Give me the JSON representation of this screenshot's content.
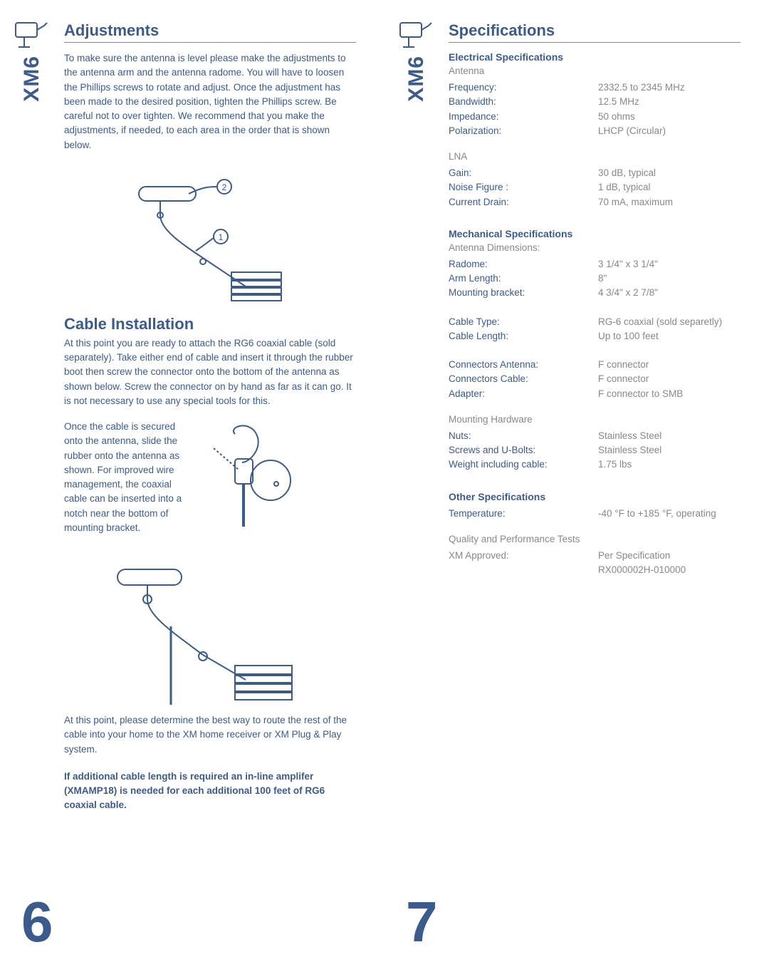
{
  "brand_label": "XM6",
  "left": {
    "title": "Adjustments",
    "para1": "To make sure the antenna is level please make the adjustments to the antenna arm and the antenna radome. You will have to loosen the Phillips screws to rotate and adjust.  Once the adjustment has been made to the desired position, tighten the Phillips screw. Be careful not to over tighten. We recommend that you make the adjustments, if needed, to each area in the order that is shown below.",
    "sub_title": "Cable Installation",
    "para2": "At this point you are ready to attach the RG6 coaxial cable (sold separately). Take either end of cable and insert it through the rubber boot then screw the connector onto the bottom of the antenna as shown below. Screw the connector on by hand as far as it can go. It is not necessary to use any special tools for this.",
    "para3": "Once the cable is secured onto the antenna, slide the rubber onto the antenna as shown. For improved wire management, the coaxial cable can be inserted into a notch near the bottom of mounting bracket.",
    "para4": "At this point, please determine the best way to route the rest of the cable into your home to the XM home receiver or XM Plug & Play system.",
    "para5": "If additional cable length is required an in-line amplifer (XMAMP18) is needed for each additional 100 feet of RG6 coaxial cable.",
    "page_num": "6"
  },
  "right": {
    "title": "Specifications",
    "elec_title": "Electrical Specifications",
    "antenna_head": "Antenna",
    "antenna": [
      {
        "l": "Frequency:",
        "v": "2332.5 to 2345 MHz"
      },
      {
        "l": "Bandwidth:",
        "v": "12.5 MHz"
      },
      {
        "l": "Impedance:",
        "v": "50 ohms"
      },
      {
        "l": "Polarization:",
        "v": "LHCP (Circular)"
      }
    ],
    "lna_head": "LNA",
    "lna": [
      {
        "l": "Gain:",
        "v": "30 dB, typical"
      },
      {
        "l": "Noise Figure :",
        "v": "1 dB, typical"
      },
      {
        "l": "Current Drain:",
        "v": "70 mA, maximum"
      }
    ],
    "mech_title": "Mechanical Specifications",
    "dim_head": "Antenna Dimensions:",
    "dims": [
      {
        "l": "Radome:",
        "v": "3 1/4\" x 3 1/4\""
      },
      {
        "l": "Arm Length:",
        "v": "8\""
      },
      {
        "l": "Mounting bracket:",
        "v": "4 3/4\" x 2 7/8\""
      }
    ],
    "cable": [
      {
        "l": "Cable Type:",
        "v": "RG-6 coaxial (sold separetly)"
      },
      {
        "l": "Cable Length:",
        "v": "Up to 100 feet"
      }
    ],
    "conn": [
      {
        "l": "Connectors Antenna:",
        "v": "F connector"
      },
      {
        "l": "Connectors Cable:",
        "v": "F connector"
      },
      {
        "l": "Adapter:",
        "v": "F connector to SMB"
      }
    ],
    "mount_head": "Mounting Hardware",
    "mount": [
      {
        "l": "Nuts:",
        "v": "Stainless Steel"
      },
      {
        "l": "Screws and U-Bolts:",
        "v": "Stainless Steel"
      },
      {
        "l": "Weight including cable:",
        "v": "1.75 lbs"
      }
    ],
    "other_title": "Other Specifications",
    "other": [
      {
        "l": "Temperature:",
        "v": "-40 °F to +185 °F, operating"
      }
    ],
    "qpt_head": "Quality and Performance Tests",
    "qpt": [
      {
        "l": "XM Approved:",
        "v": "Per Specification"
      },
      {
        "l": "",
        "v": "RX000002H-010000"
      }
    ],
    "page_num": "7"
  },
  "colors": {
    "primary": "#3a5b8c",
    "gray": "#888888"
  }
}
